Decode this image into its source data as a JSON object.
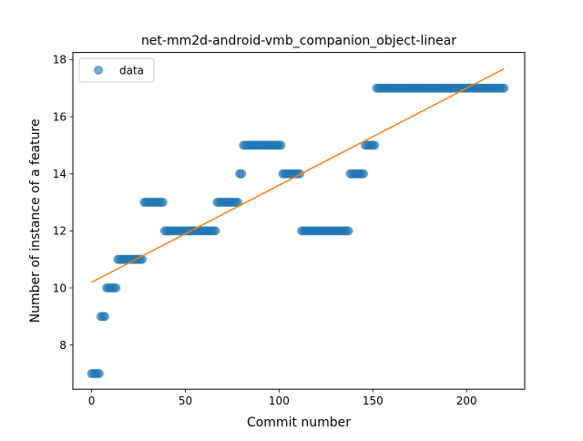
{
  "chart_data": {
    "type": "scatter",
    "title": "net-mm2d-android-vmb_companion_object-linear",
    "xlabel": "Commit number",
    "ylabel": "Number of instance of a feature",
    "xlim": [
      -10,
      231
    ],
    "ylim": [
      6.45,
      18.25
    ],
    "xticks": [
      0,
      50,
      100,
      150,
      200
    ],
    "yticks": [
      8,
      10,
      12,
      14,
      16,
      18
    ],
    "xtick_labels": [
      "0",
      "50",
      "100",
      "150",
      "200"
    ],
    "ytick_labels": [
      "8",
      "10",
      "12",
      "14",
      "16",
      "18"
    ],
    "legend": {
      "placement": "top-left",
      "entries": [
        "data"
      ]
    },
    "grid": false,
    "data_segments": [
      {
        "x_from": 0,
        "x_to": 4,
        "y": 7
      },
      {
        "x_from": 5,
        "x_to": 7,
        "y": 9
      },
      {
        "x_from": 8,
        "x_to": 13,
        "y": 10
      },
      {
        "x_from": 14,
        "x_to": 27,
        "y": 11
      },
      {
        "x_from": 28,
        "x_to": 38,
        "y": 13
      },
      {
        "x_from": 39,
        "x_to": 66,
        "y": 12
      },
      {
        "x_from": 67,
        "x_to": 78,
        "y": 13
      },
      {
        "x_from": 79,
        "x_to": 80,
        "y": 14
      },
      {
        "x_from": 81,
        "x_to": 101,
        "y": 15
      },
      {
        "x_from": 102,
        "x_to": 111,
        "y": 14
      },
      {
        "x_from": 112,
        "x_to": 137,
        "y": 12
      },
      {
        "x_from": 138,
        "x_to": 145,
        "y": 14
      },
      {
        "x_from": 146,
        "x_to": 151,
        "y": 15
      },
      {
        "x_from": 152,
        "x_to": 220,
        "y": 17
      }
    ],
    "fit_line": {
      "x": [
        0,
        220
      ],
      "y": [
        10.2,
        17.68
      ]
    },
    "colors": {
      "points": "#1f77b4",
      "fit_line": "#ff7f0e"
    }
  }
}
